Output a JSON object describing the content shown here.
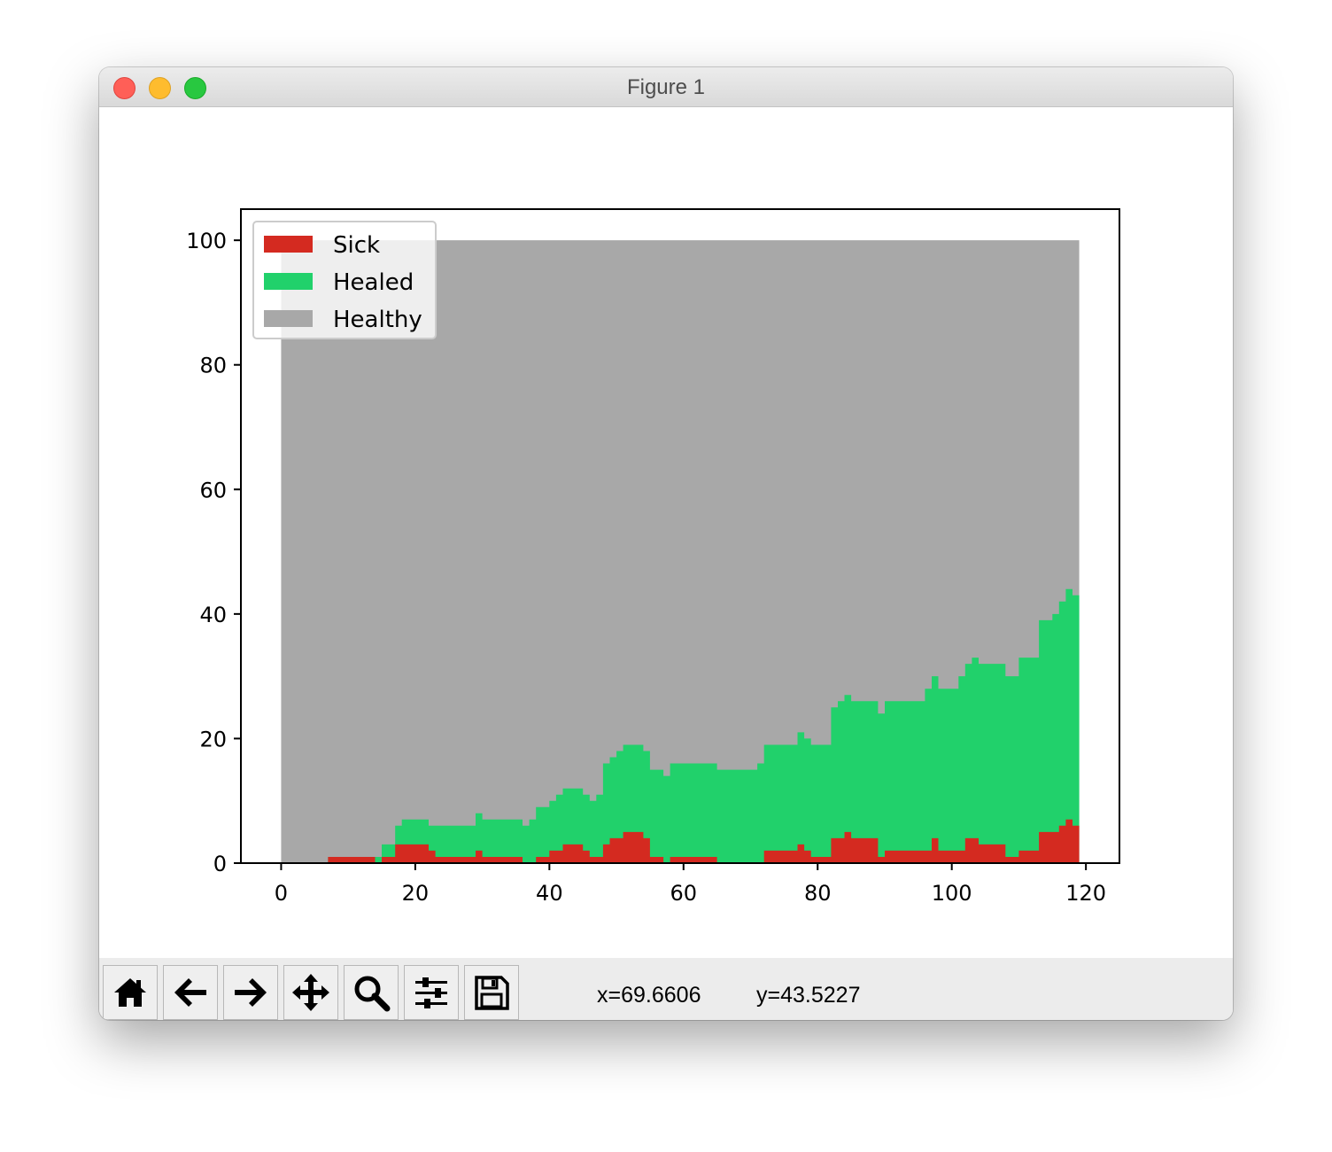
{
  "window": {
    "title": "Figure 1"
  },
  "toolbar": {
    "buttons": [
      {
        "icon": "home-icon"
      },
      {
        "icon": "back-arrow-icon"
      },
      {
        "icon": "forward-arrow-icon"
      },
      {
        "icon": "pan-move-icon"
      },
      {
        "icon": "zoom-magnifier-icon"
      },
      {
        "icon": "configure-subplots-icon"
      },
      {
        "icon": "save-floppy-icon"
      }
    ],
    "x_readout": "x=69.6606",
    "y_readout": "y=43.5227"
  },
  "chart_data": {
    "type": "area",
    "stacked": true,
    "step": true,
    "xlim": [
      -6,
      125
    ],
    "ylim": [
      0,
      105
    ],
    "xticks": [
      0,
      20,
      40,
      60,
      80,
      100,
      120
    ],
    "yticks": [
      0,
      20,
      40,
      60,
      80,
      100
    ],
    "xlabel": "",
    "ylabel": "",
    "title": "",
    "legend": {
      "placement": "upper-left"
    },
    "grid": false,
    "series": [
      {
        "name": "Sick",
        "color": "#d42a20",
        "points": [
          [
            0,
            0
          ],
          [
            7,
            1
          ],
          [
            14,
            0
          ],
          [
            15,
            1
          ],
          [
            17,
            3
          ],
          [
            22,
            2
          ],
          [
            23,
            1
          ],
          [
            29,
            2
          ],
          [
            30,
            1
          ],
          [
            36,
            0
          ],
          [
            38,
            1
          ],
          [
            40,
            2
          ],
          [
            42,
            3
          ],
          [
            45,
            2
          ],
          [
            46,
            1
          ],
          [
            48,
            3
          ],
          [
            49,
            4
          ],
          [
            51,
            5
          ],
          [
            54,
            4
          ],
          [
            55,
            1
          ],
          [
            57,
            0
          ],
          [
            58,
            1
          ],
          [
            65,
            0
          ],
          [
            72,
            2
          ],
          [
            77,
            3
          ],
          [
            78,
            2
          ],
          [
            79,
            1
          ],
          [
            82,
            4
          ],
          [
            84,
            5
          ],
          [
            85,
            4
          ],
          [
            89,
            1
          ],
          [
            90,
            2
          ],
          [
            97,
            4
          ],
          [
            98,
            2
          ],
          [
            102,
            4
          ],
          [
            104,
            3
          ],
          [
            108,
            1
          ],
          [
            110,
            2
          ],
          [
            113,
            5
          ],
          [
            115,
            5
          ],
          [
            116,
            6
          ],
          [
            117,
            7
          ],
          [
            118,
            6
          ],
          [
            119,
            6
          ]
        ]
      },
      {
        "name": "Healed",
        "color": "#21d16b",
        "points": [
          [
            0,
            0
          ],
          [
            13,
            0
          ],
          [
            14,
            1
          ],
          [
            15,
            2
          ],
          [
            17,
            3
          ],
          [
            18,
            4
          ],
          [
            23,
            5
          ],
          [
            29,
            6
          ],
          [
            37,
            7
          ],
          [
            38,
            8
          ],
          [
            41,
            9
          ],
          [
            47,
            10
          ],
          [
            48,
            13
          ],
          [
            50,
            14
          ],
          [
            58,
            15
          ],
          [
            71,
            16
          ],
          [
            72,
            17
          ],
          [
            77,
            18
          ],
          [
            82,
            21
          ],
          [
            83,
            22
          ],
          [
            89,
            23
          ],
          [
            90,
            24
          ],
          [
            96,
            26
          ],
          [
            101,
            28
          ],
          [
            103,
            29
          ],
          [
            110,
            31
          ],
          [
            113,
            34
          ],
          [
            115,
            35
          ],
          [
            116,
            36
          ],
          [
            117,
            37
          ],
          [
            119,
            37
          ]
        ]
      },
      {
        "name": "Healthy",
        "color": "#a8a8a8",
        "points": [
          [
            0,
            100
          ],
          [
            119,
            100
          ]
        ]
      }
    ]
  }
}
